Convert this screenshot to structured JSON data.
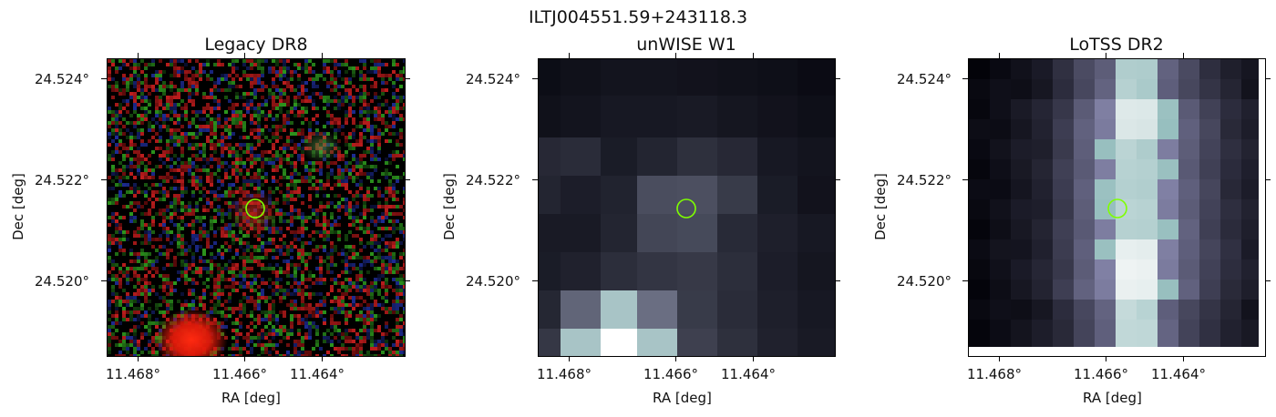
{
  "figure": {
    "title": "ILTJ004551.59+243118.3"
  },
  "panels": [
    {
      "id": "legacy",
      "title": "Legacy DR8",
      "xlabel": "RA [deg]",
      "ylabel": "Dec [deg]",
      "xticks": [
        "11.468°",
        "11.466°",
        "11.464°"
      ],
      "yticks": [
        "24.524°",
        "24.522°",
        "24.520°"
      ],
      "marker_color": "#7fff00"
    },
    {
      "id": "unwise",
      "title": "unWISE W1",
      "xlabel": "RA [deg]",
      "ylabel": "Dec [deg]",
      "xticks": [
        "11.468°",
        "11.466°",
        "11.464°"
      ],
      "yticks": [
        "24.524°",
        "24.522°",
        "24.520°"
      ],
      "marker_color": "#7fff00"
    },
    {
      "id": "lotss",
      "title": "LoTSS DR2",
      "xlabel": "RA [deg]",
      "ylabel": "Dec [deg]",
      "xticks": [
        "11.468°",
        "11.466°",
        "11.464°"
      ],
      "yticks": [
        "24.524°",
        "24.522°",
        "24.520°"
      ],
      "marker_color": "#7fff00"
    }
  ]
}
